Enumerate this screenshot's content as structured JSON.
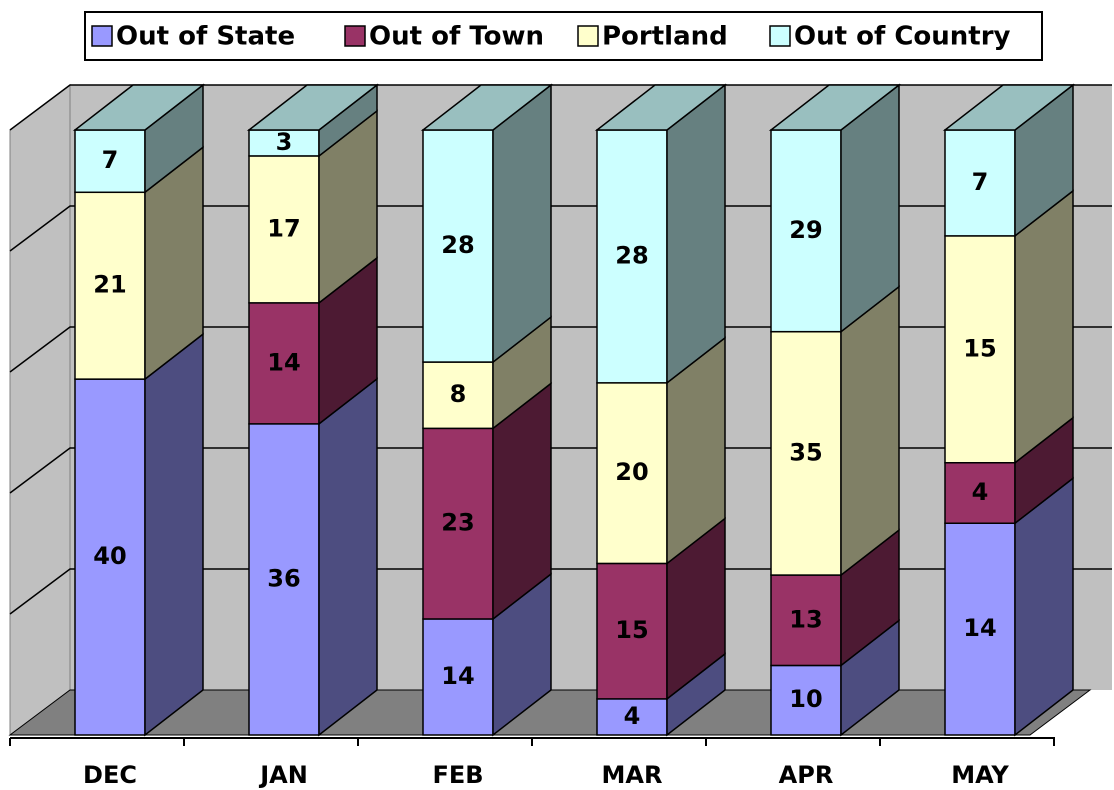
{
  "chart_data": {
    "type": "bar",
    "stacked": "percent",
    "categories": [
      "DEC",
      "JAN",
      "FEB",
      "MAR",
      "APR",
      "MAY"
    ],
    "series": [
      {
        "name": "Out of State",
        "color": "#9999ff",
        "values": [
          40,
          36,
          14,
          4,
          10,
          14
        ]
      },
      {
        "name": "Out of Town",
        "color": "#993366",
        "values": [
          null,
          14,
          23,
          15,
          13,
          4
        ]
      },
      {
        "name": "Portland",
        "color": "#ffffcc",
        "values": [
          21,
          17,
          8,
          20,
          35,
          15
        ]
      },
      {
        "name": "Out of Country",
        "color": "#ccffff",
        "values": [
          7,
          3,
          28,
          28,
          29,
          7
        ]
      }
    ],
    "ylim": [
      0,
      100
    ],
    "yticks": [
      0,
      20,
      40,
      60,
      80,
      100
    ],
    "grid": true,
    "legend": "top"
  }
}
